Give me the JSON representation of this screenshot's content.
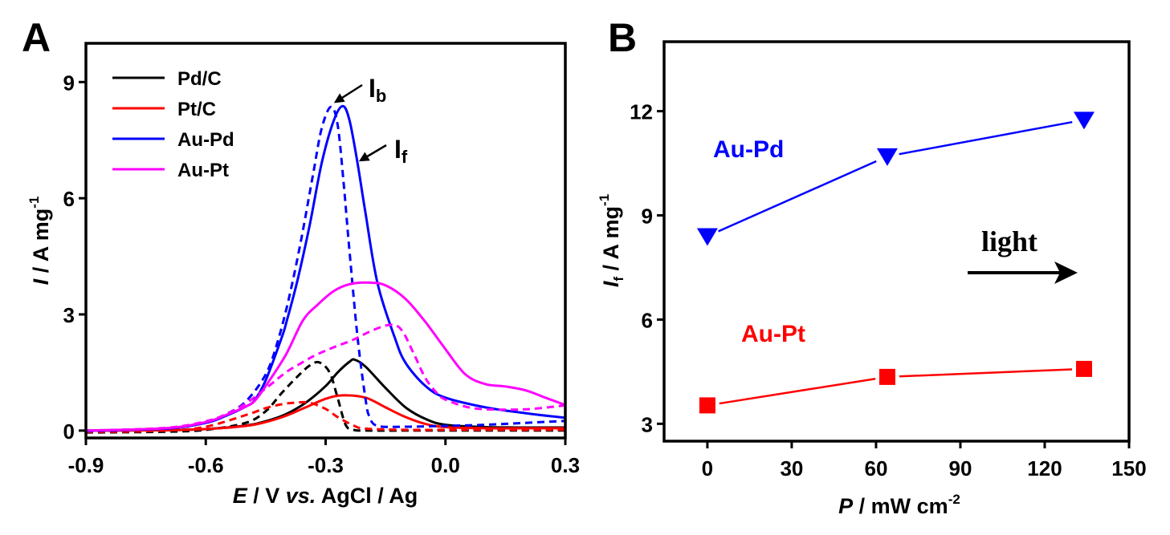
{
  "chart_data": [
    {
      "panel": "A",
      "type": "line",
      "xlabel": {
        "italic": "E",
        "rest": " / V ",
        "italic2": "vs.",
        "rest2": " AgCl / Ag"
      },
      "ylabel": {
        "italic": "I",
        "rest": " / A mg",
        "sup": "-1"
      },
      "xlim": [
        -0.9,
        0.3
      ],
      "ylim": [
        -0.19,
        10.0
      ],
      "xticks": [
        -0.9,
        -0.6,
        -0.3,
        0.0,
        0.3
      ],
      "xtick_labels": [
        "-0.9",
        "-0.6",
        "-0.3",
        "0.0",
        "0.3"
      ],
      "yticks": [
        0,
        3,
        6,
        9
      ],
      "ytick_labels": [
        "0",
        "3",
        "6",
        "9"
      ],
      "grid": false,
      "legend_position": "top-left",
      "legend": [
        {
          "label": "Pd/C",
          "color": "#000000"
        },
        {
          "label": "Pt/C",
          "color": "#ff0000"
        },
        {
          "label": "Au-Pd",
          "color": "#0000ff"
        },
        {
          "label": "Au-Pt",
          "color": "#ff00ff"
        }
      ],
      "annotations": [
        {
          "text": "I",
          "sub": "b",
          "target": "Au-Pd backward peak",
          "x": -0.287,
          "y": 8.36
        },
        {
          "text": "I",
          "sub": "f",
          "target": "Au-Pd forward scan",
          "x": -0.245,
          "y": 7.1
        }
      ],
      "series": [
        {
          "name": "Pd/C",
          "scan": "forward",
          "style": "solid",
          "color": "#000000",
          "x": [
            -0.9,
            -0.7,
            -0.6,
            -0.5,
            -0.45,
            -0.4,
            -0.35,
            -0.3,
            -0.27,
            -0.24,
            -0.227,
            -0.2,
            -0.15,
            -0.1,
            -0.05,
            0.0,
            0.1,
            0.2,
            0.3
          ],
          "y": [
            0.0,
            0.01,
            0.04,
            0.13,
            0.24,
            0.42,
            0.72,
            1.15,
            1.5,
            1.78,
            1.83,
            1.65,
            1.1,
            0.6,
            0.3,
            0.15,
            0.09,
            0.08,
            0.08
          ]
        },
        {
          "name": "Pd/C",
          "scan": "backward",
          "style": "dashed",
          "color": "#000000",
          "x": [
            -0.9,
            -0.7,
            -0.6,
            -0.5,
            -0.45,
            -0.41,
            -0.37,
            -0.34,
            -0.316,
            -0.29,
            -0.27,
            -0.25,
            -0.23,
            -0.2,
            -0.1,
            0.0,
            0.1,
            0.2,
            0.3
          ],
          "y": [
            -0.05,
            -0.03,
            0.02,
            0.2,
            0.5,
            0.97,
            1.4,
            1.68,
            1.76,
            1.5,
            0.85,
            0.15,
            0.02,
            0.0,
            0.0,
            0.0,
            0.0,
            0.0,
            0.0
          ]
        },
        {
          "name": "Pt/C",
          "scan": "forward",
          "style": "solid",
          "color": "#ff0000",
          "x": [
            -0.9,
            -0.7,
            -0.6,
            -0.5,
            -0.45,
            -0.4,
            -0.35,
            -0.3,
            -0.257,
            -0.2,
            -0.15,
            -0.1,
            -0.05,
            0.0,
            0.1,
            0.2,
            0.3
          ],
          "y": [
            0.0,
            0.01,
            0.04,
            0.12,
            0.22,
            0.38,
            0.6,
            0.82,
            0.91,
            0.85,
            0.6,
            0.35,
            0.17,
            0.09,
            0.06,
            0.06,
            0.06
          ]
        },
        {
          "name": "Pt/C",
          "scan": "backward",
          "style": "dashed",
          "color": "#ff0000",
          "x": [
            -0.9,
            -0.7,
            -0.6,
            -0.5,
            -0.45,
            -0.41,
            -0.378,
            -0.34,
            -0.3,
            -0.27,
            -0.23,
            -0.2,
            -0.1,
            0.0,
            0.1,
            0.2,
            0.3
          ],
          "y": [
            -0.04,
            0.0,
            0.1,
            0.4,
            0.58,
            0.68,
            0.72,
            0.72,
            0.56,
            0.35,
            0.13,
            0.05,
            0.02,
            0.02,
            0.02,
            0.02,
            0.02
          ]
        },
        {
          "name": "Au-Pd",
          "scan": "forward",
          "style": "solid",
          "color": "#0000ff",
          "x": [
            -0.9,
            -0.7,
            -0.6,
            -0.55,
            -0.5,
            -0.478,
            -0.45,
            -0.41,
            -0.397,
            -0.37,
            -0.34,
            -0.31,
            -0.28,
            -0.257,
            -0.24,
            -0.22,
            -0.2,
            -0.17,
            -0.127,
            -0.1,
            -0.05,
            0.0,
            0.1,
            0.2,
            0.3
          ],
          "y": [
            0.0,
            0.05,
            0.2,
            0.38,
            0.62,
            0.78,
            1.3,
            2.4,
            2.84,
            3.9,
            5.3,
            6.9,
            8.0,
            8.38,
            8.0,
            6.9,
            5.6,
            3.8,
            2.4,
            1.75,
            1.15,
            0.85,
            0.6,
            0.45,
            0.33
          ]
        },
        {
          "name": "Au-Pd",
          "scan": "backward",
          "style": "dashed",
          "color": "#0000ff",
          "x": [
            -0.9,
            -0.7,
            -0.6,
            -0.55,
            -0.5,
            -0.45,
            -0.42,
            -0.39,
            -0.36,
            -0.33,
            -0.31,
            -0.287,
            -0.27,
            -0.255,
            -0.24,
            -0.22,
            -0.2,
            -0.19,
            -0.17,
            -0.1,
            0.0,
            0.1,
            0.2,
            0.3
          ],
          "y": [
            -0.02,
            0.06,
            0.22,
            0.42,
            0.75,
            1.45,
            2.3,
            3.5,
            5.0,
            6.7,
            7.8,
            8.36,
            7.9,
            6.4,
            4.6,
            2.4,
            0.8,
            0.35,
            0.12,
            0.1,
            0.12,
            0.15,
            0.2,
            0.25
          ]
        },
        {
          "name": "Au-Pt",
          "scan": "forward",
          "style": "solid",
          "color": "#ff00ff",
          "x": [
            -0.9,
            -0.7,
            -0.6,
            -0.55,
            -0.5,
            -0.478,
            -0.45,
            -0.4,
            -0.357,
            -0.32,
            -0.28,
            -0.24,
            -0.19,
            -0.15,
            -0.1,
            -0.05,
            0.0,
            0.05,
            0.1,
            0.15,
            0.2,
            0.25,
            0.3
          ],
          "y": [
            0.0,
            0.06,
            0.22,
            0.4,
            0.62,
            0.76,
            1.15,
            1.95,
            2.84,
            3.25,
            3.6,
            3.78,
            3.82,
            3.75,
            3.4,
            2.8,
            2.1,
            1.45,
            1.2,
            1.14,
            1.04,
            0.85,
            0.66
          ]
        },
        {
          "name": "Au-Pt",
          "scan": "backward",
          "style": "dashed",
          "color": "#ff00ff",
          "x": [
            -0.9,
            -0.7,
            -0.6,
            -0.55,
            -0.5,
            -0.446,
            -0.4,
            -0.36,
            -0.325,
            -0.28,
            -0.23,
            -0.18,
            -0.137,
            -0.11,
            -0.08,
            -0.05,
            -0.02,
            0.0,
            0.05,
            0.1,
            0.2,
            0.3
          ],
          "y": [
            0.0,
            0.07,
            0.24,
            0.42,
            0.7,
            1.12,
            1.5,
            1.75,
            1.95,
            2.15,
            2.35,
            2.6,
            2.73,
            2.6,
            2.0,
            1.35,
            0.95,
            0.8,
            0.62,
            0.55,
            0.55,
            0.65
          ]
        }
      ]
    },
    {
      "panel": "B",
      "type": "line",
      "xlabel": {
        "italic": "P",
        "rest": " / mW cm",
        "sup": "-2"
      },
      "ylabel": {
        "italic": "I",
        "sub": "f",
        "rest": " / A mg",
        "sup": "-1"
      },
      "xlim": [
        -15.4,
        150
      ],
      "ylim": [
        2.5,
        14.0
      ],
      "xticks": [
        0,
        30,
        60,
        90,
        120,
        150
      ],
      "xtick_labels": [
        "0",
        "30",
        "60",
        "90",
        "120",
        "150"
      ],
      "yticks": [
        3,
        6,
        9,
        12
      ],
      "ytick_labels": [
        "3",
        "6",
        "9",
        "12"
      ],
      "grid": false,
      "annotations": [
        {
          "text": "light",
          "arrow": "right",
          "position": "center-right"
        }
      ],
      "series": [
        {
          "name": "Au-Pd",
          "color": "#0000ff",
          "marker": "triangle-down",
          "label_position": "upper-left",
          "x": [
            0,
            64,
            134
          ],
          "y": [
            8.4,
            10.7,
            11.75
          ]
        },
        {
          "name": "Au-Pt",
          "color": "#ff0000",
          "marker": "square",
          "label_position": "lower-left",
          "x": [
            0,
            64,
            134
          ],
          "y": [
            3.53,
            4.35,
            4.58
          ]
        }
      ]
    }
  ],
  "panels": {
    "A": {
      "letter": "A"
    },
    "B": {
      "letter": "B"
    }
  }
}
